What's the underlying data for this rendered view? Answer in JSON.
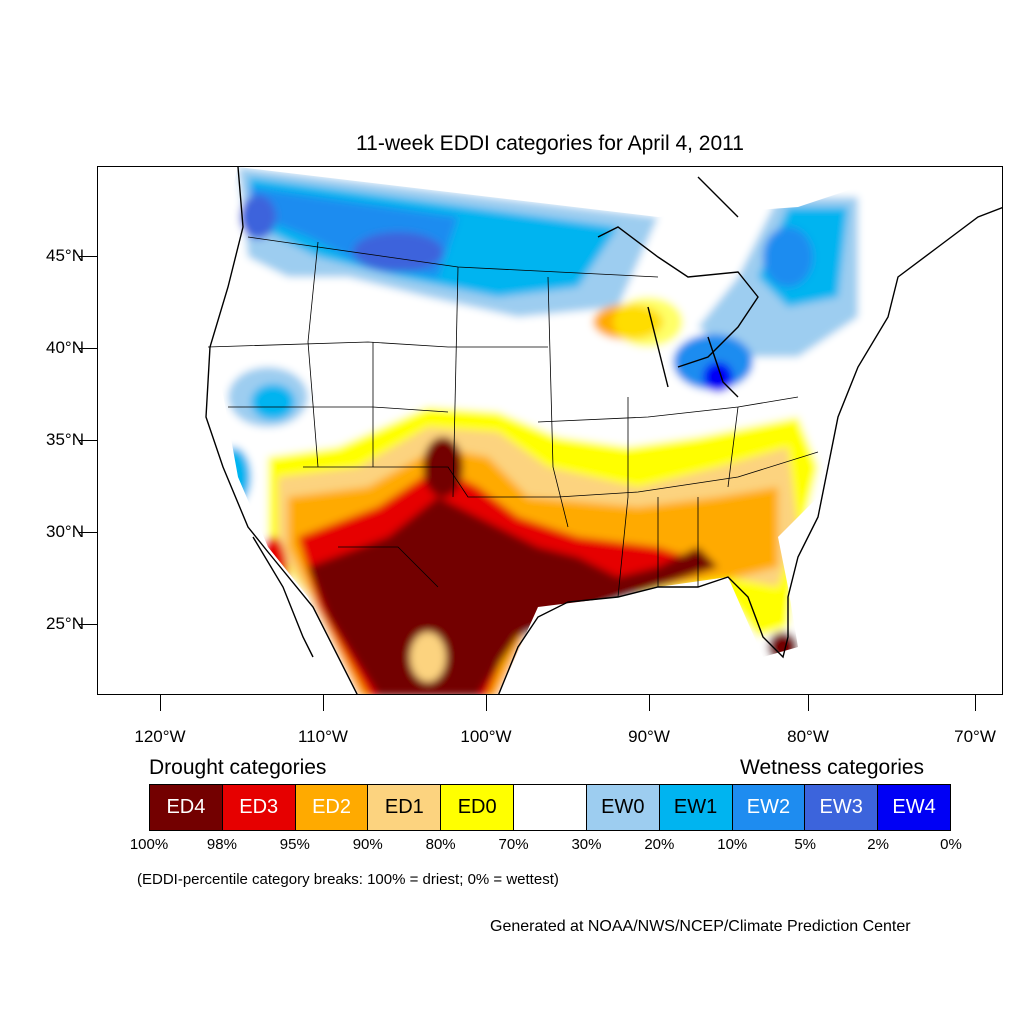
{
  "title": "11-week EDDI categories for April 4, 2011",
  "lat_labels": [
    "45°N",
    "40°N",
    "35°N",
    "30°N",
    "25°N"
  ],
  "lon_labels": [
    "120°W",
    "110°W",
    "100°W",
    "90°W",
    "80°W",
    "70°W"
  ],
  "legend": {
    "drought_heading": "Drought categories",
    "wetness_heading": "Wetness categories",
    "categories": [
      {
        "label": "ED4",
        "color": "#730000",
        "text_color": "#ffffff"
      },
      {
        "label": "ED3",
        "color": "#e60000",
        "text_color": "#ffffff"
      },
      {
        "label": "ED2",
        "color": "#ffaa00",
        "text_color": "#ffffff"
      },
      {
        "label": "ED1",
        "color": "#fcd37f",
        "text_color": "#000000"
      },
      {
        "label": "ED0",
        "color": "#ffff00",
        "text_color": "#000000"
      },
      {
        "label": "",
        "color": "#ffffff",
        "text_color": "#000000"
      },
      {
        "label": "EW0",
        "color": "#9dcdf0",
        "text_color": "#000000"
      },
      {
        "label": "EW1",
        "color": "#00b4f0",
        "text_color": "#000000"
      },
      {
        "label": "EW2",
        "color": "#1e8cf0",
        "text_color": "#ffffff"
      },
      {
        "label": "EW3",
        "color": "#3c64dc",
        "text_color": "#ffffff"
      },
      {
        "label": "EW4",
        "color": "#0000f5",
        "text_color": "#ffffff"
      }
    ],
    "percent_breaks": [
      "100%",
      "98%",
      "95%",
      "90%",
      "80%",
      "70%",
      "30%",
      "20%",
      "10%",
      "5%",
      "2%",
      "0%"
    ]
  },
  "breaks_note": "(EDDI-percentile category breaks: 100% = driest; 0% = wettest)",
  "credit": "Generated at NOAA/NWS/NCEP/Climate Prediction Center"
}
